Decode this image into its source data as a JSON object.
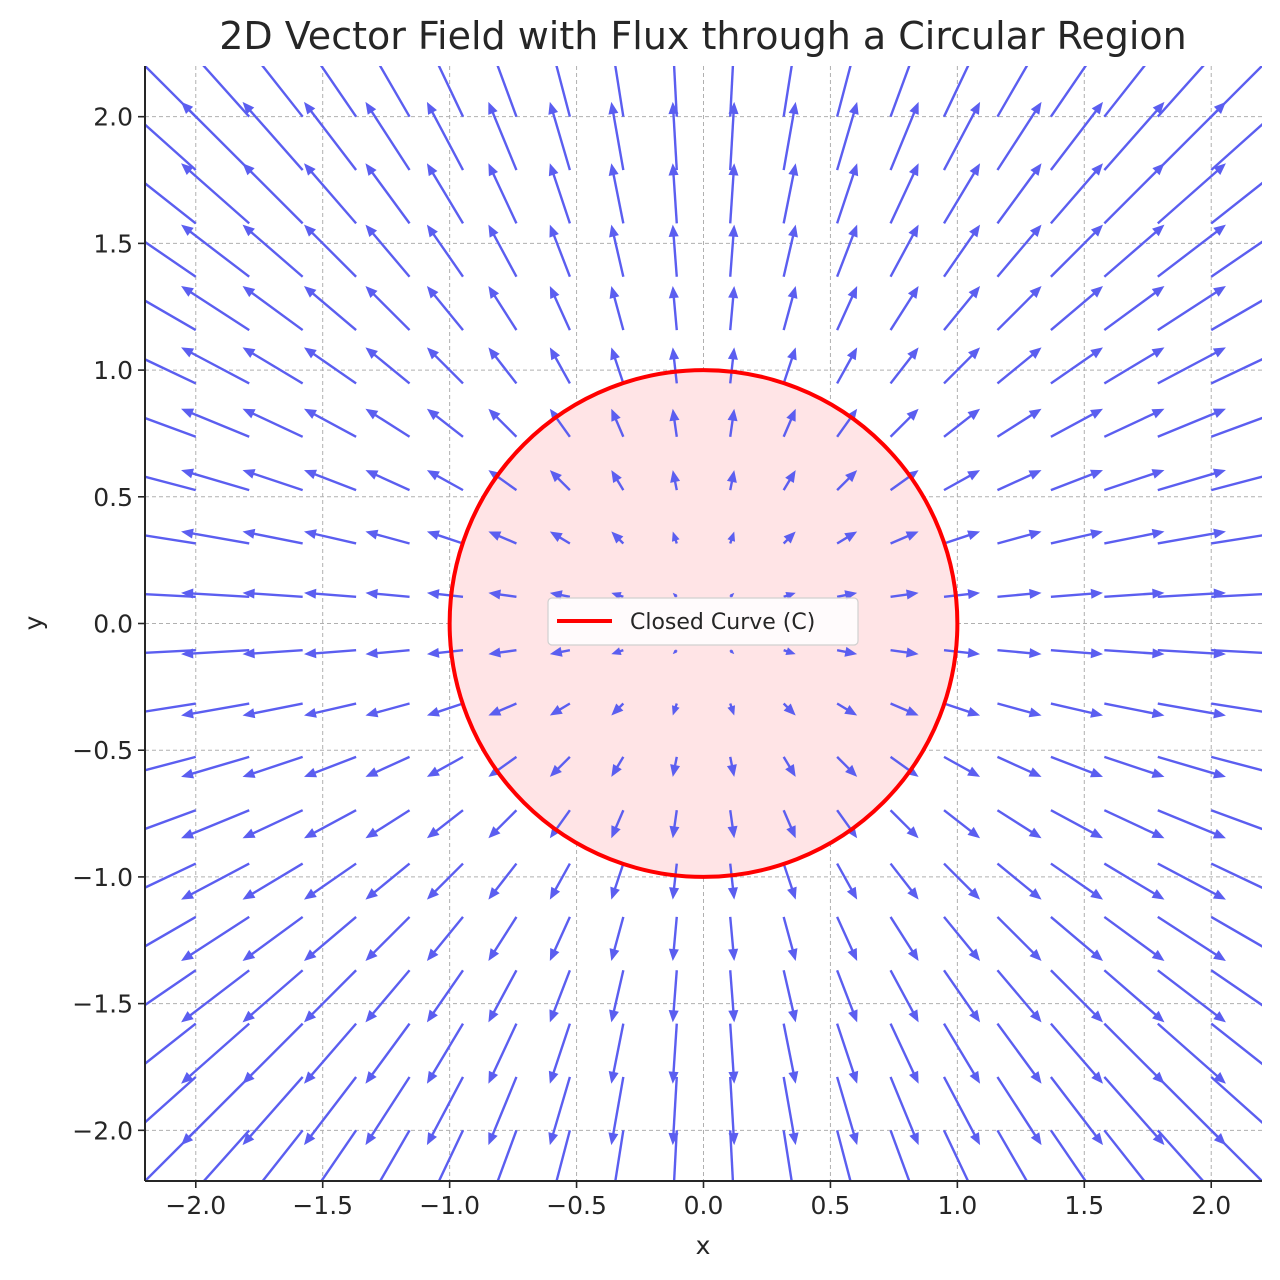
{
  "chart_data": {
    "type": "quiver",
    "title": "2D Vector Field with Flux through a Circular Region",
    "xlabel": "x",
    "ylabel": "y",
    "xlim": [
      -2.2,
      2.2
    ],
    "ylim": [
      -2.2,
      2.2
    ],
    "xticks": [
      -2.0,
      -1.5,
      -1.0,
      -0.5,
      0.0,
      0.5,
      1.0,
      1.5,
      2.0
    ],
    "xtick_labels": [
      "−2.0",
      "−1.5",
      "−1.0",
      "−0.5",
      "0.0",
      "0.5",
      "1.0",
      "1.5",
      "2.0"
    ],
    "yticks": [
      -2.0,
      -1.5,
      -1.0,
      -0.5,
      0.0,
      0.5,
      1.0,
      1.5,
      2.0
    ],
    "ytick_labels": [
      "−2.0",
      "−1.5",
      "−1.0",
      "−0.5",
      "0.0",
      "0.5",
      "1.0",
      "1.5",
      "2.0"
    ],
    "grid": true,
    "field": {
      "description_formula": "F(x, y) = (x, y)",
      "x_range": [
        -2.0,
        2.0
      ],
      "y_range": [
        -2.0,
        2.0
      ],
      "samples_per_axis": 20,
      "color": "#5b5ef0"
    },
    "circle": {
      "center": [
        0,
        0
      ],
      "radius": 1.0,
      "edge_color": "#ff0000",
      "fill_color": "#ffe4e6"
    },
    "legend": {
      "position": "center",
      "entries": [
        {
          "label": "Closed Curve (C)",
          "color": "#ff0000"
        }
      ]
    }
  }
}
